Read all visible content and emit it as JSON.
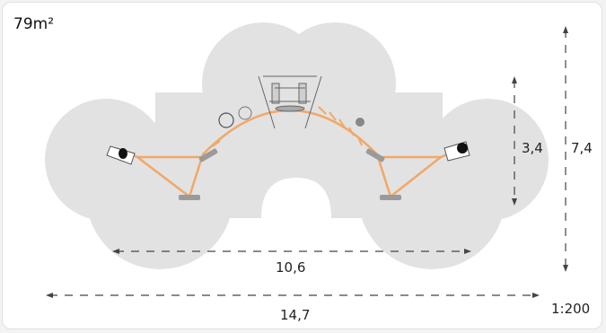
{
  "area": "79m²",
  "dimensions": {
    "inner_width": "10,6",
    "outer_width": "14,7",
    "inner_height": "3,4",
    "outer_height": "7,4"
  },
  "scale": "1:200",
  "colors": {
    "zone": "#e2e2e2",
    "frame": "#f0a868",
    "dash": "#444444"
  }
}
